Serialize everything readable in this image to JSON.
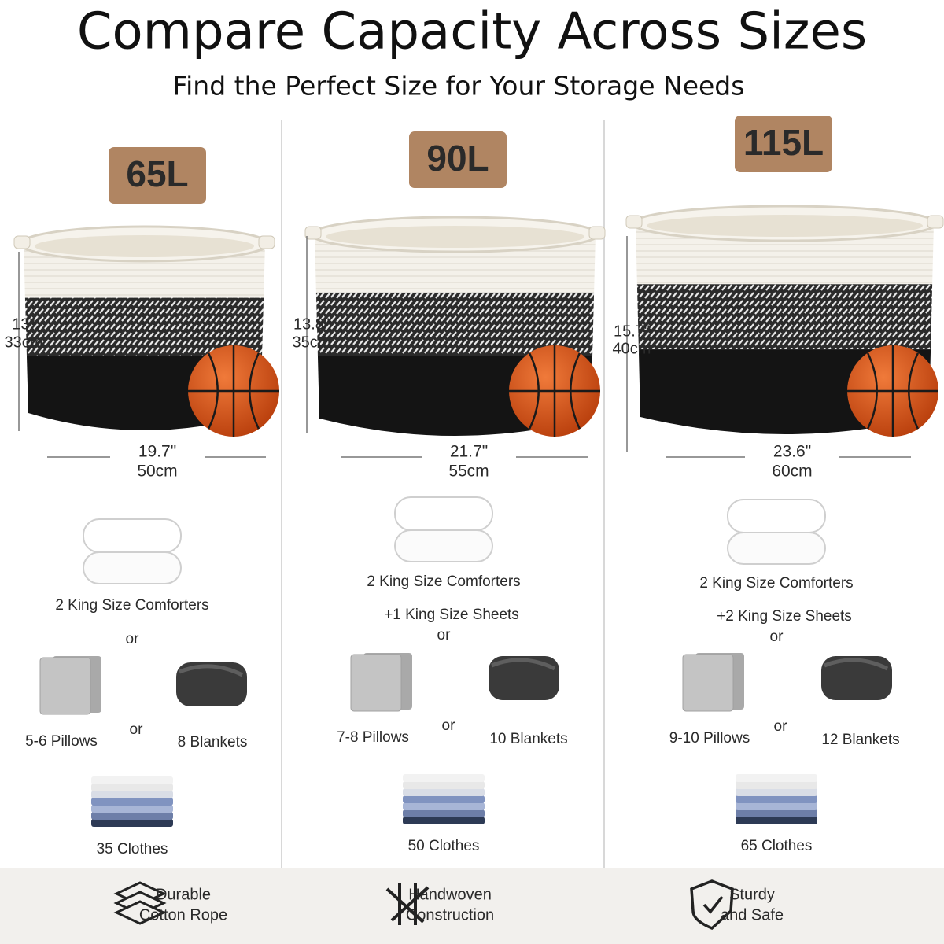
{
  "header": {
    "title": "Compare Capacity Across Sizes",
    "subtitle": "Find the Perfect Size for Your Storage Needs"
  },
  "columns": [
    {
      "capacity": "65L",
      "height": [
        "13\"",
        "33cm"
      ],
      "width": [
        "19.7\"",
        "50cm"
      ],
      "comforters": "2 King Size Comforters",
      "or_top": "or",
      "pillows": "5-6 Pillows",
      "or_mid": "or",
      "blankets": "8 Blankets",
      "clothes": "35 Clothes"
    },
    {
      "capacity": "90L",
      "height": [
        "13.8\"",
        "35cm"
      ],
      "width": [
        "21.7\"",
        "55cm"
      ],
      "comforters": "2 King Size Comforters",
      "sheets": "+1 King Size Sheets",
      "or_top": "or",
      "pillows": "7-8 Pillows",
      "or_mid": "or",
      "blankets": "10 Blankets",
      "clothes": "50 Clothes"
    },
    {
      "capacity": "115L",
      "height": [
        "15.7\"",
        "40cm"
      ],
      "width": [
        "23.6\"",
        "60cm"
      ],
      "comforters": "2 King Size Comforters",
      "sheets": "+2 King Size Sheets",
      "or_top": "or",
      "pillows": "9-10 Pillows",
      "or_mid": "or",
      "blankets": "12 Blankets",
      "clothes": "65 Clothes"
    }
  ],
  "features": [
    {
      "lines": [
        "Durable",
        "Cotton Rope"
      ]
    },
    {
      "lines": [
        "Handwoven",
        "Construction"
      ]
    },
    {
      "lines": [
        "Sturdy",
        "and Safe"
      ]
    }
  ]
}
